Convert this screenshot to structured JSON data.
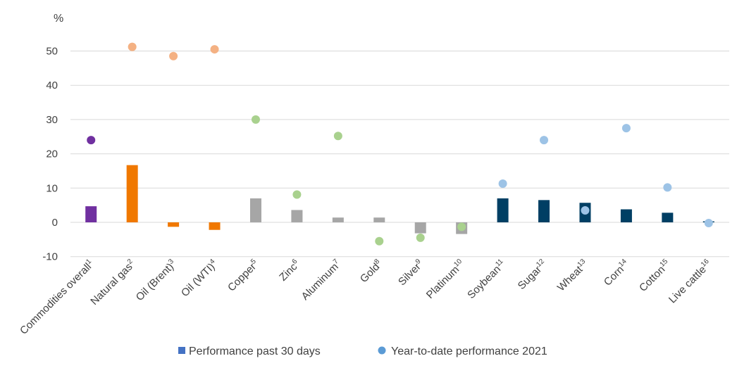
{
  "chart_data": {
    "type": "bar",
    "y_unit": "%",
    "ylim": [
      -10,
      55
    ],
    "yticks": [
      -10,
      0,
      10,
      20,
      30,
      40,
      50
    ],
    "grid": true,
    "legend_position": "bottom",
    "categories": [
      {
        "name": "Commodities overall",
        "sup": "1"
      },
      {
        "name": "Natural gas",
        "sup": "2"
      },
      {
        "name": "Oil (Brent)",
        "sup": "3"
      },
      {
        "name": "Oil (WTI)",
        "sup": "4"
      },
      {
        "name": "Copper",
        "sup": "5"
      },
      {
        "name": "Zinc",
        "sup": "6"
      },
      {
        "name": "Aluminum",
        "sup": "7"
      },
      {
        "name": "Gold",
        "sup": "8"
      },
      {
        "name": "Silver",
        "sup": "9"
      },
      {
        "name": "Platinum",
        "sup": "10"
      },
      {
        "name": "Soybean",
        "sup": "11"
      },
      {
        "name": "Sugar",
        "sup": "12"
      },
      {
        "name": "Wheat",
        "sup": "13"
      },
      {
        "name": "Corn",
        "sup": "14"
      },
      {
        "name": "Cotton",
        "sup": "15"
      },
      {
        "name": "Live cattle",
        "sup": "16"
      }
    ],
    "series": [
      {
        "name": "Performance past 30 days",
        "kind": "bar",
        "legend_color": "#4472C4",
        "values": [
          4.7,
          16.7,
          -1.3,
          -2.2,
          7.0,
          3.6,
          1.4,
          1.4,
          -3.2,
          -3.4,
          7.0,
          6.5,
          5.7,
          3.8,
          2.8,
          0.3
        ],
        "colors": [
          "#7030A0",
          "#F07800",
          "#F07800",
          "#F07800",
          "#A6A6A6",
          "#A6A6A6",
          "#A6A6A6",
          "#A6A6A6",
          "#A6A6A6",
          "#A6A6A6",
          "#003F64",
          "#003F64",
          "#003F64",
          "#003F64",
          "#003F64",
          "#003F64"
        ]
      },
      {
        "name": "Year-to-date performance 2021",
        "kind": "dot",
        "legend_color": "#5B9BD5",
        "values": [
          24.0,
          51.2,
          48.5,
          50.5,
          30.0,
          8.1,
          25.2,
          -5.5,
          -4.5,
          -1.3,
          11.3,
          24.0,
          3.5,
          27.5,
          10.2,
          -0.2
        ],
        "colors": [
          "#7030A0",
          "#F4B183",
          "#F4B183",
          "#F4B183",
          "#A9D18E",
          "#A9D18E",
          "#A9D18E",
          "#A9D18E",
          "#A9D18E",
          "#A9D18E",
          "#9DC3E6",
          "#9DC3E6",
          "#9DC3E6",
          "#9DC3E6",
          "#9DC3E6",
          "#9DC3E6"
        ]
      }
    ]
  }
}
